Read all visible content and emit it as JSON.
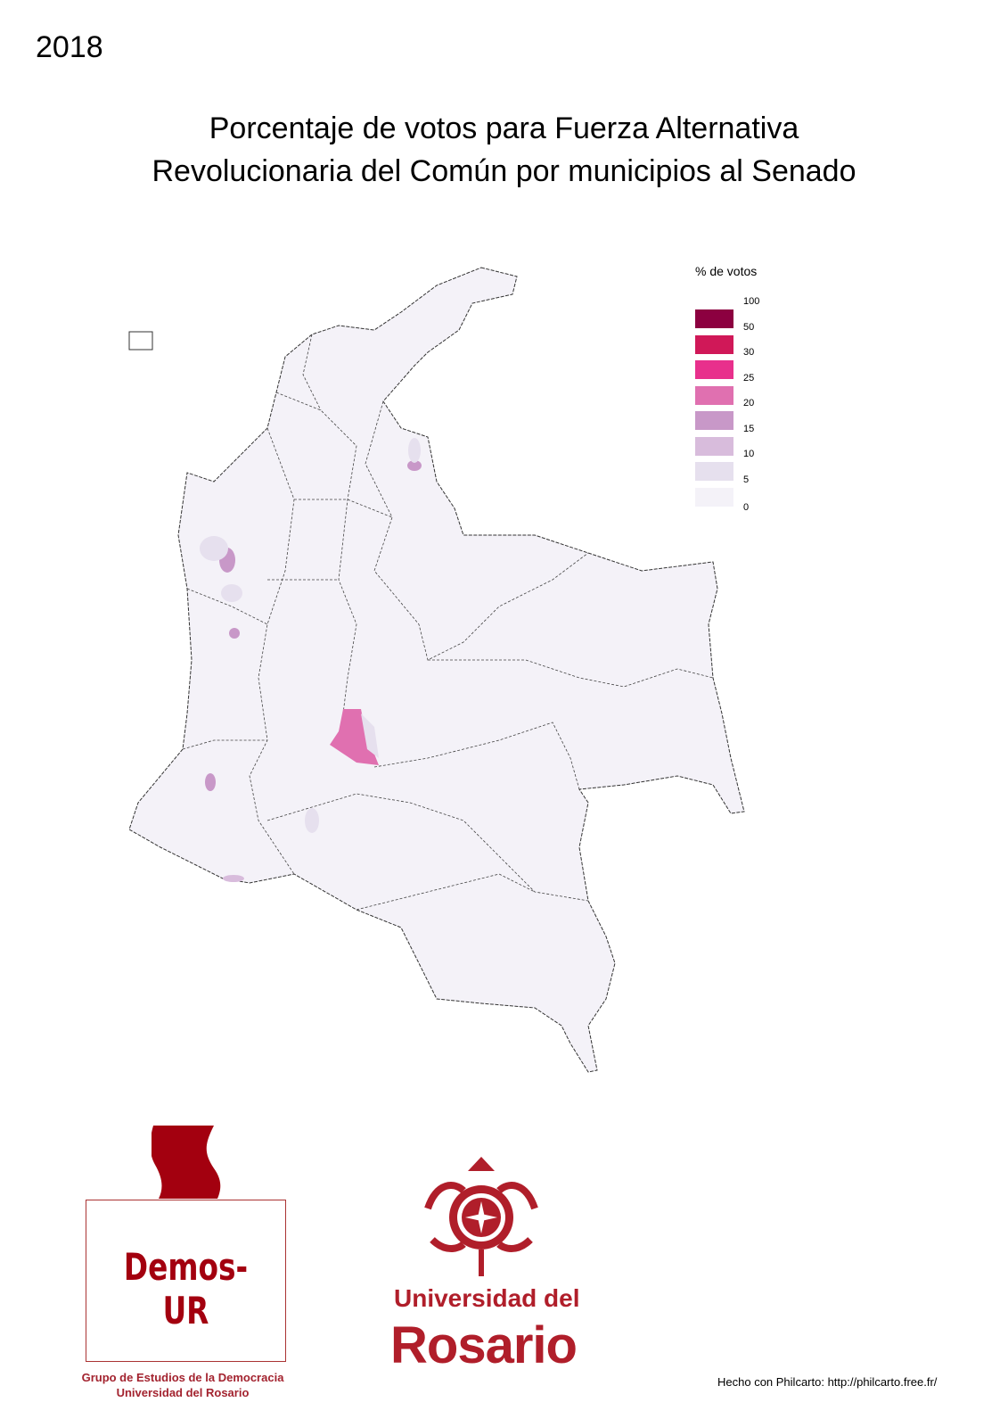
{
  "year": "2018",
  "title_line1": "Porcentaje de votos para Fuerza Alternativa",
  "title_line2": "Revolucionaria del Común por municipios al Senado",
  "legend": {
    "title": "% de votos",
    "labels": [
      "100",
      "50",
      "30",
      "25",
      "20",
      "15",
      "10",
      "5",
      "0"
    ],
    "colors": [
      "#8c0040",
      "#d01858",
      "#e8308c",
      "#e070b0",
      "#c898c8",
      "#d8bcdc",
      "#e6e0ee",
      "#f4f2f8"
    ]
  },
  "map": {
    "base_fill": "#f4f2f8",
    "border_color": "#333333"
  },
  "logos": {
    "demos_name": "Demos-UR",
    "demos_sub1": "Grupo de Estudios de la Democracia",
    "demos_sub2": "Universidad del Rosario",
    "ur_line1": "Universidad del",
    "ur_line2": "Rosario",
    "brand_color": "#b01e2a"
  },
  "credit": "Hecho con Philcarto: http://philcarto.free.fr/"
}
